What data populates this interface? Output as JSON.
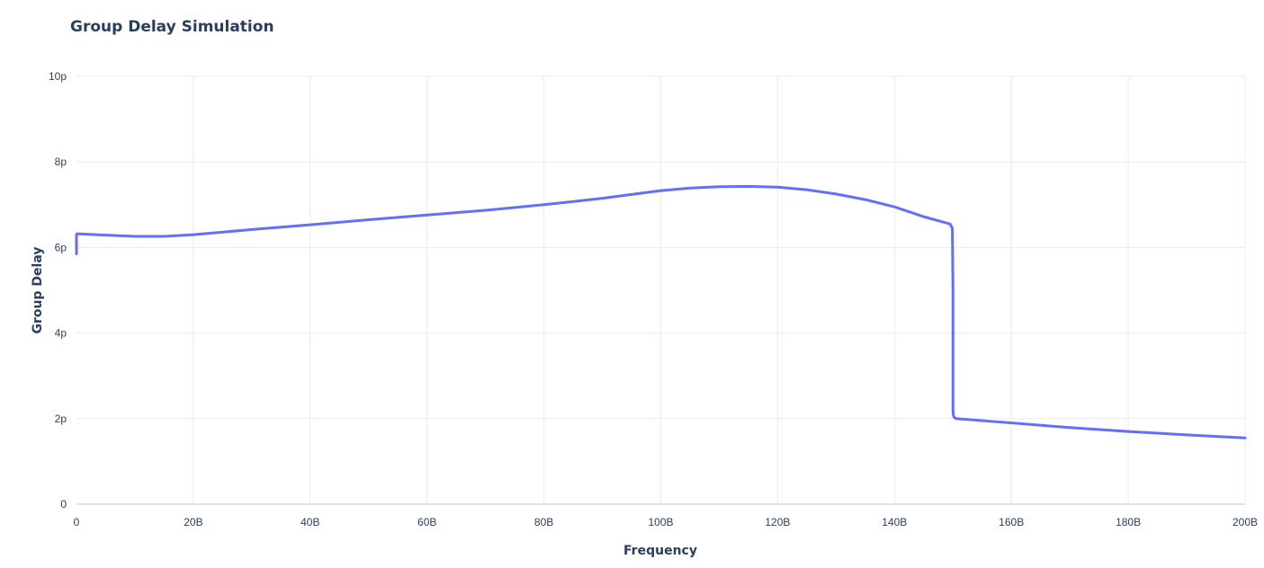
{
  "chart_data": {
    "type": "line",
    "title": "Group Delay Simulation",
    "xlabel": "Frequency",
    "ylabel": "Group Delay",
    "xlim": [
      0,
      200000000000
    ],
    "ylim": [
      0,
      1e-11
    ],
    "x_ticks": [
      {
        "value": 0,
        "label": "0"
      },
      {
        "value": 20000000000,
        "label": "20B"
      },
      {
        "value": 40000000000,
        "label": "40B"
      },
      {
        "value": 60000000000,
        "label": "60B"
      },
      {
        "value": 80000000000,
        "label": "80B"
      },
      {
        "value": 100000000000,
        "label": "100B"
      },
      {
        "value": 120000000000,
        "label": "120B"
      },
      {
        "value": 140000000000,
        "label": "140B"
      },
      {
        "value": 160000000000,
        "label": "160B"
      },
      {
        "value": 180000000000,
        "label": "180B"
      },
      {
        "value": 200000000000,
        "label": "200B"
      }
    ],
    "y_ticks": [
      {
        "value": 0,
        "label": "0"
      },
      {
        "value": 2e-12,
        "label": "2p"
      },
      {
        "value": 4e-12,
        "label": "4p"
      },
      {
        "value": 6e-12,
        "label": "6p"
      },
      {
        "value": 8e-12,
        "label": "8p"
      },
      {
        "value": 1e-11,
        "label": "10p"
      }
    ],
    "grid": true,
    "legend": "none",
    "series": [
      {
        "color": "#636efa",
        "x": [
          0,
          0,
          100000000,
          5000000000,
          10000000000,
          15000000000,
          20000000000,
          30000000000,
          40000000000,
          50000000000,
          60000000000,
          70000000000,
          80000000000,
          90000000000,
          100000000000,
          105000000000,
          110000000000,
          115000000000,
          120000000000,
          125000000000,
          130000000000,
          135000000000,
          140000000000,
          145000000000,
          149500000000,
          149900000000,
          150000000000,
          150000000000,
          150100000000,
          150500000000,
          160000000000,
          170000000000,
          180000000000,
          190000000000,
          200000000000
        ],
        "y": [
          5.85e-12,
          6.3e-12,
          6.32e-12,
          6.29e-12,
          6.26e-12,
          6.26e-12,
          6.3e-12,
          6.42e-12,
          6.53e-12,
          6.65e-12,
          6.76e-12,
          6.87e-12,
          7e-12,
          7.15e-12,
          7.33e-12,
          7.39e-12,
          7.42e-12,
          7.43e-12,
          7.41e-12,
          7.35e-12,
          7.25e-12,
          7.12e-12,
          6.95e-12,
          6.72e-12,
          6.55e-12,
          6.45e-12,
          5e-12,
          2.2e-12,
          2.05e-12,
          2e-12,
          1.9e-12,
          1.79e-12,
          1.7e-12,
          1.62e-12,
          1.55e-12
        ]
      }
    ]
  }
}
